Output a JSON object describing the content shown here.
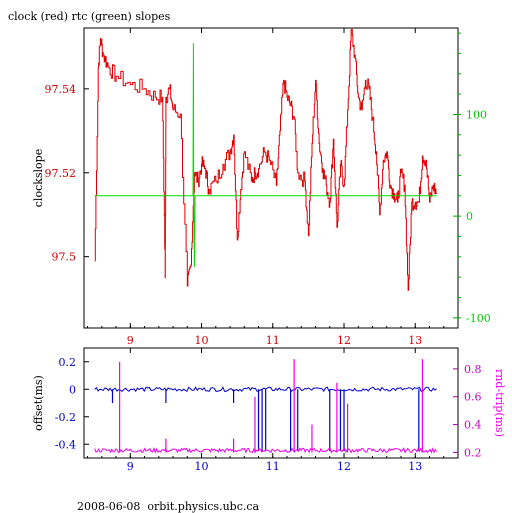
{
  "title": "clock (red) rtc (green) slopes",
  "footer": "2008-06-08  orbit.physics.ubc.ca",
  "colors": {
    "clock": "#dd0000",
    "rtc": "#00dd00",
    "offset": "#0000cc",
    "rndtrip": "#ee00ee",
    "axis": "#000000"
  },
  "chart_data": [
    {
      "type": "line",
      "title": "clock (red) rtc (green) slopes",
      "xlim": [
        8.35,
        13.6
      ],
      "x_ticks": [
        9,
        10,
        11,
        12,
        13
      ],
      "x_tick_labels": [
        "9",
        "10",
        "11",
        "12",
        "13"
      ],
      "ylabel": "clockslope",
      "ylim": [
        97.483,
        97.5545
      ],
      "y_ticks": [
        97.5,
        97.52,
        97.54
      ],
      "y_tick_labels": [
        "97.5",
        "97.52",
        "97.54"
      ],
      "y2lim": [
        -110,
        185
      ],
      "y2_ticks": [
        -100,
        0,
        100
      ],
      "y2_tick_labels": [
        "-100",
        "0",
        "100"
      ],
      "series": [
        {
          "color": "#dd0000",
          "x": [
            8.5,
            8.55,
            8.58,
            8.62,
            8.7,
            8.8,
            9.0,
            9.2,
            9.35,
            9.45,
            9.49,
            9.5,
            9.55,
            9.6,
            9.7,
            9.8,
            9.85,
            9.9,
            9.95,
            10.0,
            10.05,
            10.1,
            10.2,
            10.3,
            10.4,
            10.45,
            10.5,
            10.55,
            10.6,
            10.7,
            10.75,
            10.8,
            10.88,
            10.95,
            11.05,
            11.1,
            11.15,
            11.2,
            11.25,
            11.3,
            11.35,
            11.45,
            11.5,
            11.55,
            11.6,
            11.65,
            11.7,
            11.75,
            11.8,
            11.85,
            11.9,
            11.95,
            12.0,
            12.05,
            12.1,
            12.15,
            12.2,
            12.25,
            12.3,
            12.35,
            12.4,
            12.45,
            12.5,
            12.55,
            12.6,
            12.65,
            12.7,
            12.75,
            12.8,
            12.85,
            12.9,
            12.95,
            13.0,
            13.05,
            13.1,
            13.15,
            13.2,
            13.25,
            13.3
          ],
          "y": [
            97.499,
            97.545,
            97.552,
            97.548,
            97.545,
            97.543,
            97.541,
            97.54,
            97.538,
            97.538,
            97.495,
            97.538,
            97.54,
            97.535,
            97.534,
            97.493,
            97.498,
            97.52,
            97.518,
            97.522,
            97.521,
            97.516,
            97.518,
            97.522,
            97.525,
            97.529,
            97.504,
            97.516,
            97.525,
            97.518,
            97.52,
            97.521,
            97.525,
            97.523,
            97.517,
            97.53,
            97.542,
            97.538,
            97.536,
            97.533,
            97.52,
            97.518,
            97.505,
            97.527,
            97.542,
            97.527,
            97.521,
            97.517,
            97.513,
            97.528,
            97.507,
            97.522,
            97.517,
            97.535,
            97.554,
            97.548,
            97.538,
            97.535,
            97.542,
            97.54,
            97.533,
            97.525,
            97.51,
            97.523,
            97.525,
            97.517,
            97.515,
            97.513,
            97.52,
            97.517,
            97.492,
            97.513,
            97.513,
            97.513,
            97.524,
            97.523,
            97.513,
            97.517,
            97.515
          ]
        },
        {
          "color": "#00dd00",
          "axis": "right",
          "x": [
            8.5,
            9.85,
            9.88,
            9.885,
            9.89,
            9.9,
            9.91,
            13.3
          ],
          "y": [
            20,
            20,
            20,
            170,
            20,
            -50,
            20,
            20
          ]
        }
      ]
    },
    {
      "type": "line",
      "xlim": [
        8.35,
        13.6
      ],
      "x_ticks": [
        9,
        10,
        11,
        12,
        13
      ],
      "x_tick_labels": [
        "9",
        "10",
        "11",
        "12",
        "13"
      ],
      "ylabel": "offset(ms)",
      "ylim": [
        -0.5,
        0.3
      ],
      "y_ticks": [
        -0.4,
        -0.2,
        0,
        0.2
      ],
      "y_tick_labels": [
        "-0.4",
        "-0.2",
        "0",
        "0.2"
      ],
      "y2label": "rnd-trip(ms)",
      "y2lim": [
        0.16,
        0.95
      ],
      "y2_ticks": [
        0.2,
        0.4,
        0.6,
        0.8
      ],
      "y2_tick_labels": [
        "0.2",
        "0.4",
        "0.6",
        "0.8"
      ],
      "series": [
        {
          "color": "#0000cc",
          "baseline": 0,
          "x_range": [
            8.5,
            13.3
          ],
          "spikes_x": [
            8.75,
            9.5,
            10.45,
            10.8,
            10.85,
            10.9,
            11.25,
            11.35,
            11.8,
            11.95,
            12.0,
            13.05
          ],
          "spikes_y": [
            -0.1,
            -0.1,
            -0.1,
            -0.45,
            -0.45,
            -0.45,
            -0.45,
            -0.45,
            -0.45,
            -0.45,
            -0.45,
            -0.45
          ]
        },
        {
          "color": "#ee00ee",
          "axis": "right",
          "baseline": 0.2,
          "x_range": [
            8.5,
            13.3
          ],
          "spikes_x": [
            8.85,
            9.5,
            10.45,
            10.75,
            11.3,
            11.55,
            11.9,
            12.05,
            13.1
          ],
          "spikes_y": [
            0.85,
            0.3,
            0.3,
            0.6,
            0.87,
            0.4,
            0.7,
            0.55,
            0.87
          ]
        }
      ]
    }
  ]
}
